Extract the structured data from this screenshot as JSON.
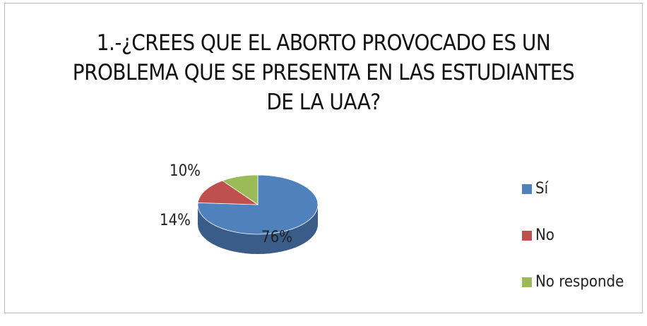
{
  "chart_data": {
    "type": "pie",
    "title": "1.-¿CREES QUE EL ABORTO PROVOCADO ES UN PROBLEMA QUE SE PRESENTA EN LAS ESTUDIANTES DE LA UAA?",
    "categories": [
      "Sí",
      "No",
      "No responde"
    ],
    "values": [
      76,
      14,
      10
    ],
    "value_labels": [
      "76%",
      "14%",
      "10%"
    ],
    "colors": [
      "#4f81bd",
      "#c0504d",
      "#9bbb59"
    ],
    "legend": "right"
  }
}
